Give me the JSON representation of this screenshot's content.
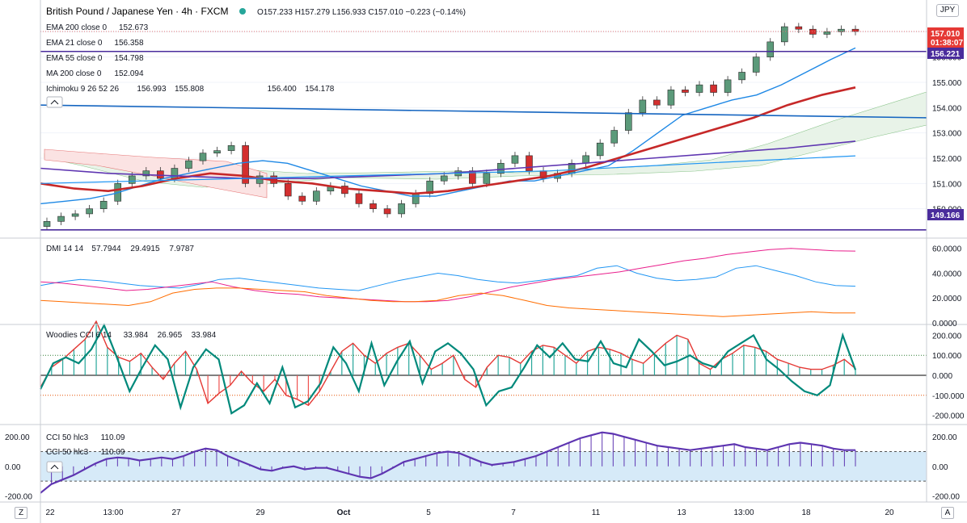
{
  "header": {
    "title": "British Pound / Japanese Yen · 4h · FXCM",
    "ohlc": "O157.233 H157.279 L156.933 C157.010 −0.223 (−0.14%)",
    "currency": "JPY"
  },
  "price_badges": {
    "last_price": "157.010",
    "countdown": "01:38:07",
    "level_upper": "156.221",
    "level_lower": "149.166"
  },
  "indicators": [
    {
      "label": "EMA 200 close 0",
      "values": [
        "152.673"
      ],
      "colors": [
        "#2962ff"
      ]
    },
    {
      "label": "EMA 21 close 0",
      "values": [
        "156.358"
      ],
      "colors": [
        "#2962ff"
      ]
    },
    {
      "label": "EMA 55 close 0",
      "values": [
        "154.798"
      ],
      "colors": [
        "#e91e63"
      ]
    },
    {
      "label": "MA 200 close 0",
      "values": [
        "152.094"
      ],
      "colors": [
        "#2962ff"
      ]
    },
    {
      "label": "Ichimoku 9 26 52 26",
      "values": [
        "156.993",
        "155.808",
        "156.400",
        "154.178"
      ],
      "colors": [
        "#2962ff",
        "#b71c1c",
        "#43a047",
        "#ef9a9a"
      ]
    }
  ],
  "dmi": {
    "label": "DMI 14 14",
    "values": [
      "57.7944",
      "29.4915",
      "7.9787"
    ],
    "colors": [
      "#e91e8c",
      "#2196f3",
      "#ff6d00"
    ]
  },
  "woodies": {
    "label": "Woodies CCI 6 14",
    "values": [
      "33.984",
      "26.965",
      "33.984"
    ],
    "colors": [
      "#00897b",
      "#00897b",
      "#e53935"
    ]
  },
  "cci": {
    "label": "CCI 50 hlc3",
    "value": "110.09",
    "color": "#5e35b1"
  },
  "colors": {
    "up": "#5b9a7a",
    "down": "#d32f2f",
    "ema21": "#1e88e5",
    "ema55": "#c62828",
    "ema200": "#5e35b1",
    "hline": "#4a2c9c",
    "trend": "#1565c0",
    "cloud_bull": "#e8f3e8",
    "cloud_bear": "#fbe3e3"
  },
  "chart_data": [
    {
      "type": "candlestick",
      "pane": "price",
      "ylim": [
        149.0,
        158.0
      ],
      "y_ticks": [
        "157.000",
        "156.000",
        "155.000",
        "154.000",
        "153.000",
        "152.000",
        "151.000",
        "150.000"
      ],
      "x_tick_labels": [
        "22",
        "13:00",
        "27",
        "29",
        "Oct",
        "5",
        "7",
        "11",
        "13",
        "13:00",
        "18",
        "20"
      ],
      "close_path": [
        149.5,
        149.7,
        149.8,
        150.0,
        150.3,
        151.0,
        151.3,
        151.5,
        151.2,
        151.6,
        151.9,
        152.2,
        152.3,
        152.5,
        151.0,
        151.3,
        151.0,
        150.5,
        150.3,
        150.7,
        150.9,
        150.6,
        150.2,
        150.0,
        149.8,
        150.2,
        150.6,
        151.1,
        151.3,
        151.5,
        151.0,
        151.4,
        151.8,
        152.1,
        151.5,
        151.2,
        151.4,
        151.8,
        152.1,
        152.6,
        153.1,
        153.8,
        154.3,
        154.1,
        154.7,
        154.6,
        154.9,
        154.6,
        155.1,
        155.4,
        156.0,
        156.6,
        157.2,
        157.1,
        156.9,
        157.0,
        157.1,
        157.01
      ],
      "ema21": [
        150.2,
        150.3,
        150.4,
        150.6,
        150.9,
        151.2,
        151.4,
        151.6,
        151.8,
        151.9,
        151.8,
        151.5,
        151.2,
        150.9,
        150.7,
        150.5,
        150.5,
        150.7,
        150.9,
        151.1,
        151.1,
        151.3,
        151.5,
        151.7,
        152.3,
        153.0,
        153.7,
        154.0,
        154.3,
        154.5,
        154.9,
        155.4,
        155.9,
        156.358
      ],
      "ema55": [
        151.0,
        150.8,
        150.7,
        150.9,
        151.2,
        151.4,
        151.3,
        151.1,
        151.0,
        150.8,
        150.7,
        150.6,
        150.7,
        150.9,
        151.1,
        151.3,
        151.6,
        152.0,
        152.4,
        152.8,
        153.2,
        153.6,
        154.1,
        154.5,
        154.798
      ],
      "ema200": [
        151.6,
        151.4,
        151.3,
        151.2,
        151.2,
        151.3,
        151.4,
        151.6,
        151.8,
        152.0,
        152.2,
        152.4,
        152.673
      ],
      "ma200": [
        151.0,
        151.1,
        151.2,
        151.3,
        151.4,
        151.5,
        151.7,
        151.9,
        152.094
      ],
      "trendline": [
        154.1,
        153.6
      ],
      "hlines": [
        156.221,
        149.166
      ]
    },
    {
      "type": "line",
      "pane": "DMI 14 14",
      "ylim": [
        0,
        65
      ],
      "y_ticks": [
        "60.0000",
        "40.0000",
        "20.0000",
        "0.0000"
      ],
      "series": [
        {
          "name": "+DI",
          "values": [
            30,
            33,
            35,
            34,
            32,
            30,
            29,
            28,
            31,
            35,
            36,
            34,
            32,
            30,
            28,
            27,
            26,
            30,
            34,
            37,
            40,
            38,
            35,
            33,
            32,
            34,
            36,
            38,
            44,
            46,
            40,
            36,
            34,
            35,
            37,
            44,
            46,
            42,
            38,
            33,
            30,
            29.4915
          ]
        },
        {
          "name": "ADX",
          "values": [
            33,
            32,
            30,
            28,
            26,
            27,
            29,
            31,
            33,
            29,
            26,
            24,
            23,
            21,
            20,
            19,
            18,
            17,
            17,
            18,
            21,
            25,
            29,
            32,
            35,
            37,
            39,
            41,
            44,
            47,
            50,
            52,
            55,
            57,
            59,
            60,
            59,
            58,
            57.7944
          ]
        },
        {
          "name": "-DI",
          "values": [
            18,
            17,
            16,
            15,
            14,
            17,
            24,
            27,
            28,
            28,
            27,
            26,
            25,
            22,
            20,
            18,
            17,
            17,
            18,
            22,
            24,
            22,
            18,
            14,
            12,
            11,
            10,
            9,
            8,
            7,
            6,
            5,
            6,
            7,
            8,
            9,
            8,
            7.9787
          ]
        }
      ]
    },
    {
      "type": "line",
      "pane": "Woodies CCI 6 14",
      "ylim": [
        -230,
        230
      ],
      "y_ticks": [
        "200.000",
        "100.000",
        "0.000",
        "-100.000",
        "-200.000"
      ],
      "series": [
        {
          "name": "CCI 14",
          "values": [
            -60,
            40,
            80,
            130,
            180,
            270,
            140,
            90,
            70,
            110,
            40,
            -20,
            60,
            120,
            30,
            -140,
            -90,
            -50,
            20,
            -40,
            -80,
            -20,
            -100,
            -120,
            -150,
            -80,
            20,
            120,
            160,
            100,
            60,
            110,
            140,
            160,
            100,
            30,
            60,
            100,
            -20,
            -60,
            40,
            100,
            90,
            60,
            120,
            150,
            140,
            100,
            60,
            120,
            140,
            130,
            110,
            80,
            60,
            110,
            160,
            200,
            180,
            60,
            30,
            80,
            110,
            150,
            140,
            120,
            80,
            60,
            40,
            30,
            30,
            50,
            80,
            33.984
          ]
        },
        {
          "name": "CCI 6",
          "values": [
            -70,
            60,
            90,
            60,
            130,
            250,
            90,
            -80,
            40,
            150,
            80,
            -160,
            40,
            130,
            80,
            -190,
            -150,
            -40,
            -140,
            40,
            -160,
            -130,
            -40,
            140,
            60,
            -80,
            160,
            -50,
            70,
            170,
            -40,
            120,
            160,
            110,
            30,
            -150,
            -80,
            -60,
            40,
            150,
            90,
            160,
            80,
            70,
            170,
            60,
            40,
            180,
            120,
            50,
            70,
            100,
            60,
            40,
            120,
            160,
            200,
            80,
            30,
            -30,
            -80,
            -100,
            -50,
            200,
            26.965
          ]
        }
      ]
    },
    {
      "type": "line",
      "pane": "CCI 50 hlc3",
      "ylim": [
        -230,
        250
      ],
      "y_ticks": [
        "200.00",
        "0.00",
        "-200.00"
      ],
      "series": [
        {
          "name": "CCI 50",
          "values": [
            -180,
            -120,
            -90,
            -60,
            -20,
            20,
            50,
            60,
            55,
            40,
            50,
            60,
            50,
            70,
            100,
            120,
            110,
            70,
            40,
            10,
            -20,
            -30,
            -10,
            0,
            -20,
            -10,
            -10,
            -30,
            -50,
            -70,
            -80,
            -50,
            -10,
            30,
            50,
            70,
            90,
            100,
            90,
            60,
            30,
            10,
            20,
            30,
            50,
            70,
            100,
            130,
            160,
            190,
            210,
            230,
            220,
            200,
            180,
            160,
            140,
            130,
            120,
            110,
            120,
            130,
            140,
            150,
            130,
            120,
            110,
            130,
            150,
            160,
            150,
            140,
            120,
            110,
            110.09
          ]
        }
      ]
    }
  ]
}
